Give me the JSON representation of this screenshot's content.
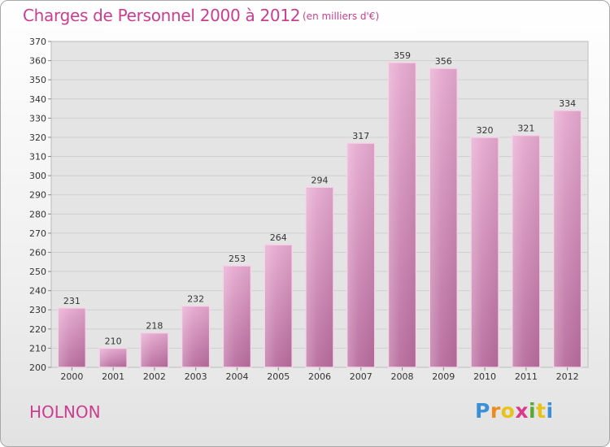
{
  "title": "Charges de Personnel 2000 à 2012",
  "subtitle": "(en milliers d'€)",
  "commune": "HOLNON",
  "logo": {
    "letters": [
      "P",
      "r",
      "o",
      "x",
      "i",
      "t",
      "i"
    ],
    "colors": [
      "#3a8fd6",
      "#ef8a1a",
      "#e8c21a",
      "#d93a8a",
      "#5aa832",
      "#e8c21a",
      "#3a8fd6"
    ]
  },
  "chart_data": {
    "type": "bar",
    "title": "Charges de Personnel 2000 à 2012",
    "subtitle": "(en milliers d'€)",
    "categories": [
      "2000",
      "2001",
      "2002",
      "2003",
      "2004",
      "2005",
      "2006",
      "2007",
      "2008",
      "2009",
      "2010",
      "2011",
      "2012"
    ],
    "values": [
      231,
      210,
      218,
      232,
      253,
      264,
      294,
      317,
      359,
      356,
      320,
      321,
      334
    ],
    "ylim": [
      200,
      370
    ],
    "yticks": [
      200,
      210,
      220,
      230,
      240,
      250,
      260,
      270,
      280,
      290,
      300,
      310,
      320,
      330,
      340,
      350,
      360,
      370
    ],
    "grid": true,
    "bar_color": "#d98cbc"
  }
}
